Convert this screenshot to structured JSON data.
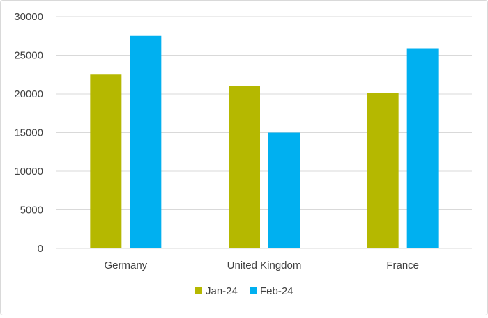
{
  "chart_data": {
    "type": "bar",
    "title": "",
    "xlabel": "",
    "ylabel": "",
    "categories": [
      "Germany",
      "United Kingdom",
      "France"
    ],
    "series": [
      {
        "name": "Jan-24",
        "values": [
          22500,
          21000,
          20100
        ],
        "color": "#b5b800"
      },
      {
        "name": "Feb-24",
        "values": [
          27500,
          15000,
          25900
        ],
        "color": "#00b0f0"
      }
    ],
    "ylim": [
      0,
      30000
    ],
    "yticks": [
      0,
      5000,
      10000,
      15000,
      20000,
      25000,
      30000
    ],
    "grid": true,
    "legend_position": "bottom",
    "gridline_color": "#d9d9d9"
  }
}
